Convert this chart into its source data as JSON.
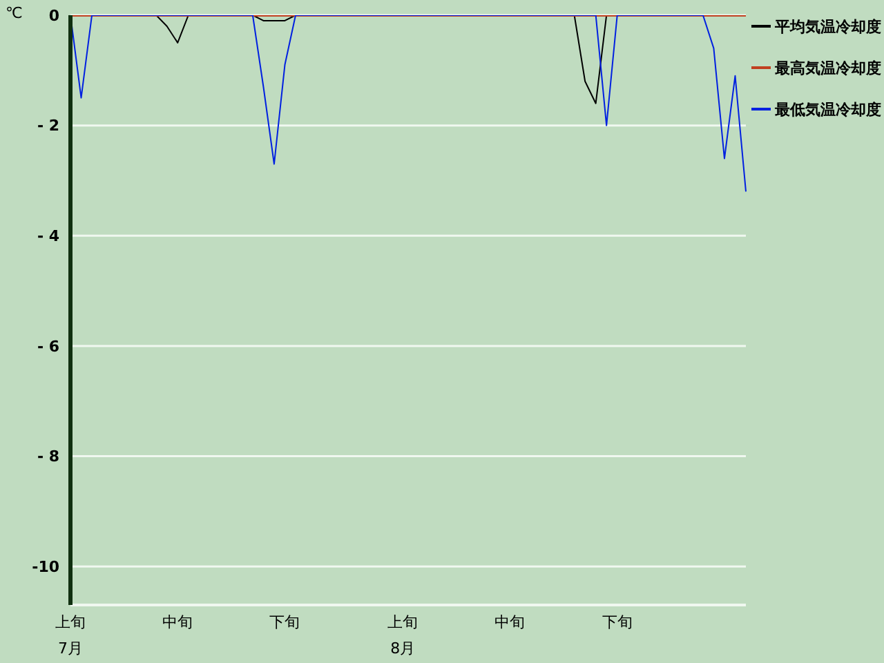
{
  "chart_data": {
    "type": "line",
    "ylabel": "℃",
    "categories": [
      "上旬\n7月",
      null,
      null,
      null,
      null,
      null,
      null,
      null,
      null,
      null,
      "中旬",
      null,
      null,
      null,
      null,
      null,
      null,
      null,
      null,
      null,
      "下旬",
      null,
      null,
      null,
      null,
      null,
      null,
      null,
      null,
      null,
      null,
      "上旬\n8月",
      null,
      null,
      null,
      null,
      null,
      null,
      null,
      null,
      null,
      "中旬",
      null,
      null,
      null,
      null,
      null,
      null,
      null,
      null,
      null,
      "下旬",
      null,
      null,
      null,
      null,
      null,
      null,
      null,
      null,
      null,
      null,
      null,
      null
    ],
    "series": [
      {
        "name": "平均気温冷却度",
        "color": "#000000",
        "values": [
          null,
          null,
          null,
          null,
          null,
          null,
          null,
          null,
          0,
          -0.2,
          -0.5,
          0,
          null,
          null,
          null,
          null,
          null,
          0,
          -0.1,
          -0.1,
          -0.1,
          0,
          null,
          null,
          null,
          null,
          null,
          null,
          null,
          null,
          null,
          null,
          null,
          null,
          null,
          null,
          null,
          null,
          null,
          null,
          null,
          null,
          null,
          null,
          null,
          null,
          null,
          0,
          -1.2,
          -1.6,
          0,
          null,
          null,
          null,
          null,
          null,
          null,
          null,
          null,
          null,
          null,
          null,
          null,
          null
        ]
      },
      {
        "name": "最高気温冷却度",
        "color": "#c04020",
        "values": [
          0,
          0,
          0,
          0,
          0,
          0,
          0,
          0,
          0,
          0,
          0,
          0,
          0,
          0,
          0,
          0,
          0,
          0,
          0,
          0,
          0,
          0,
          0,
          0,
          0,
          0,
          0,
          0,
          0,
          0,
          0,
          0,
          0,
          0,
          0,
          0,
          0,
          0,
          0,
          0,
          0,
          0,
          0,
          0,
          0,
          0,
          0,
          0,
          0,
          0,
          0,
          0,
          0,
          0,
          0,
          0,
          0,
          0,
          0,
          0,
          0,
          0,
          0,
          0
        ]
      },
      {
        "name": "最低気温冷却度",
        "color": "#0020e0",
        "values": [
          0,
          -1.5,
          0,
          0,
          0,
          0,
          0,
          0,
          0,
          0,
          0,
          0,
          0,
          0,
          0,
          0,
          0,
          0,
          -1.3,
          -2.7,
          -0.9,
          0,
          0,
          0,
          0,
          0,
          0,
          0,
          0,
          0,
          0,
          0,
          0,
          0,
          0,
          0,
          0,
          0,
          0,
          0,
          0,
          0,
          0,
          0,
          0,
          0,
          0,
          0,
          0,
          0,
          -2.0,
          0,
          0,
          0,
          0,
          0,
          0,
          0,
          0,
          0,
          -0.6,
          -2.6,
          -1.1,
          -3.2
        ]
      }
    ],
    "ylim": [
      -10.7,
      0
    ],
    "yticks": [
      -10,
      {
        "value": -8,
        "label": "- 8"
      },
      {
        "value": -6,
        "label": "- 6"
      },
      {
        "value": -4,
        "label": "- 4"
      },
      {
        "value": -2,
        "label": "- 2"
      },
      0
    ],
    "grid": "y",
    "legend": "top right",
    "marker": "none",
    "line_style": "solid"
  }
}
